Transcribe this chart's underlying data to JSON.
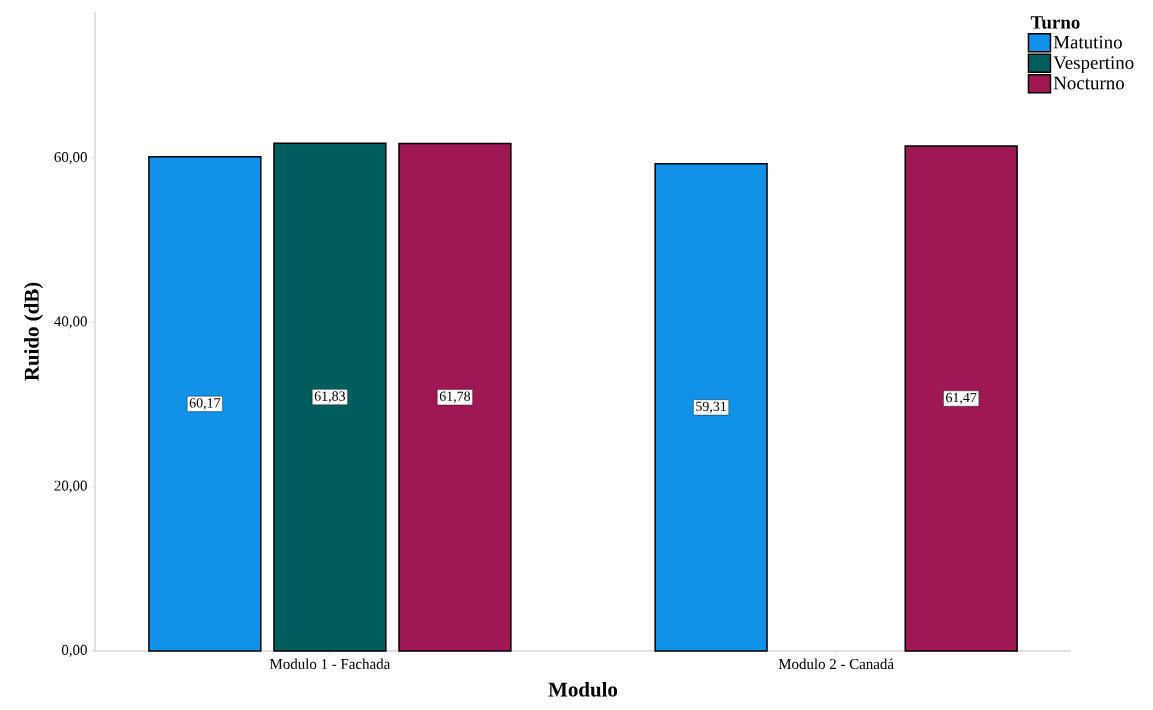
{
  "chart_data": {
    "type": "bar",
    "xlabel": "Modulo",
    "ylabel": "Ruido (dB)",
    "legend_title": "Turno",
    "categories": [
      "Modulo 1 - Fachada",
      "Modulo 2 - Canadá"
    ],
    "series": [
      {
        "name": "Matutino",
        "color": "#1192e8",
        "values": [
          60.17,
          59.31
        ],
        "value_labels": [
          "60,17",
          "59,31"
        ]
      },
      {
        "name": "Vespertino",
        "color": "#005d5d",
        "values": [
          61.83,
          null
        ],
        "value_labels": [
          "61,83",
          null
        ]
      },
      {
        "name": "Nocturno",
        "color": "#9f1853",
        "values": [
          61.78,
          61.47
        ],
        "value_labels": [
          "61,78",
          "61,47"
        ]
      }
    ],
    "ylim": [
      0,
      77.8
    ],
    "yticks": [
      {
        "value": 0,
        "label": "0,00"
      },
      {
        "value": 20,
        "label": "20,00"
      },
      {
        "value": 40,
        "label": "40,00"
      },
      {
        "value": 60,
        "label": "60,00"
      }
    ],
    "grid": false,
    "legend": "top right"
  }
}
